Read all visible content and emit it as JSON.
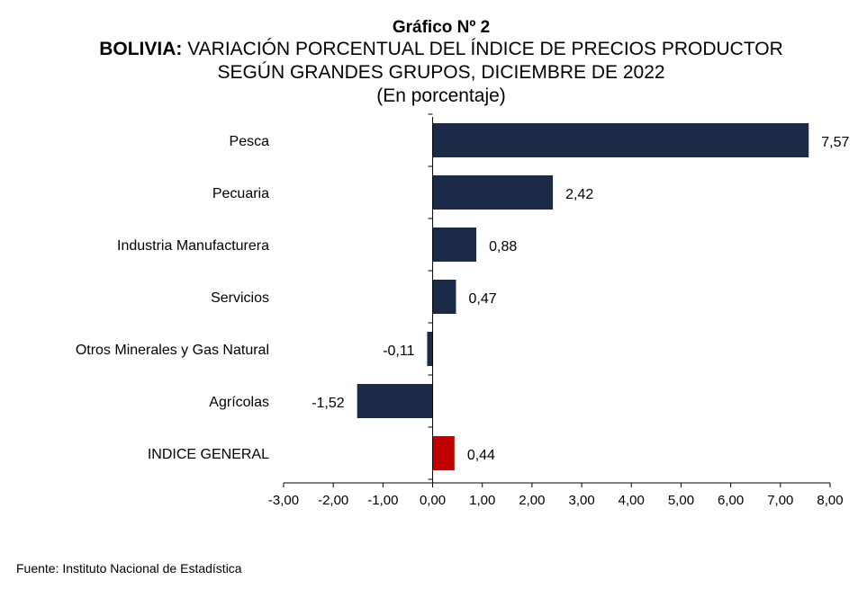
{
  "header": {
    "title": "Gráfico Nº 2",
    "subtitle_bold": "BOLIVIA:",
    "subtitle_rest": " VARIACIÓN PORCENTUAL DEL ÍNDICE DE PRECIOS PRODUCTOR",
    "subtitle_line2": "SEGÚN GRANDES GRUPOS, DICIEMBRE DE 2022",
    "unit": "(En porcentaje)"
  },
  "source": "Fuente: Instituto Nacional de Estadística",
  "colors": {
    "bar": "#1a2a47",
    "highlight": "#c00000"
  },
  "chart_data": {
    "type": "bar",
    "orientation": "horizontal",
    "categories": [
      "Pesca",
      "Pecuaria",
      "Industria Manufacturera",
      "Servicios",
      "Otros Minerales y Gas Natural",
      "Agrícolas",
      "INDICE GENERAL"
    ],
    "values": [
      7.57,
      2.42,
      0.88,
      0.47,
      -0.11,
      -1.52,
      0.44
    ],
    "value_labels": [
      "7,57",
      "2,42",
      "0,88",
      "0,47",
      "-0,11",
      "-1,52",
      "0,44"
    ],
    "highlight_category": "INDICE GENERAL",
    "xlim": [
      -3,
      8
    ],
    "xticks": [
      "-3,00",
      "-2,00",
      "-1,00",
      "0,00",
      "1,00",
      "2,00",
      "3,00",
      "4,00",
      "5,00",
      "6,00",
      "7,00",
      "8,00"
    ],
    "grid": false,
    "legend": "none"
  }
}
